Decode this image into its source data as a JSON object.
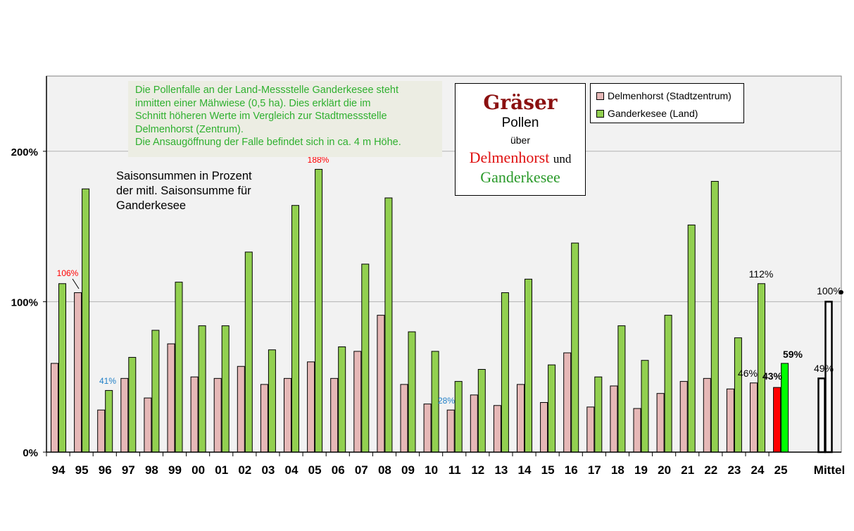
{
  "chart_data": {
    "type": "bar",
    "title": "Gräser Pollen über Delmenhorst und Ganderkesee",
    "ylabel": "Saisonsummen in Prozent der mitl. Saisonsumme für Ganderkesee",
    "ylim": [
      0,
      250
    ],
    "yticks": [
      0,
      100,
      200
    ],
    "ytick_labels": [
      "0%",
      "100%",
      "200%"
    ],
    "grid": true,
    "categories": [
      "94",
      "95",
      "96",
      "97",
      "98",
      "99",
      "00",
      "01",
      "02",
      "03",
      "04",
      "05",
      "06",
      "07",
      "08",
      "09",
      "10",
      "11",
      "12",
      "13",
      "14",
      "15",
      "16",
      "17",
      "18",
      "19",
      "20",
      "21",
      "22",
      "23",
      "24",
      "25",
      "Mittel"
    ],
    "series": [
      {
        "name": "Delmenhorst (Stadtzentrum)",
        "color": "#e6b8b7",
        "values": [
          59,
          106,
          28,
          49,
          36,
          72,
          50,
          49,
          57,
          45,
          49,
          60,
          49,
          67,
          91,
          45,
          32,
          28,
          38,
          31,
          45,
          33,
          66,
          30,
          44,
          29,
          39,
          47,
          49,
          42,
          46,
          43,
          49
        ]
      },
      {
        "name": "Ganderkesee (Land)",
        "color": "#92d050",
        "values": [
          112,
          175,
          41,
          63,
          81,
          113,
          84,
          84,
          133,
          68,
          164,
          188,
          70,
          125,
          169,
          80,
          67,
          47,
          55,
          106,
          115,
          58,
          139,
          50,
          84,
          61,
          91,
          151,
          180,
          76,
          112,
          59,
          100
        ]
      }
    ],
    "highlight_colors": {
      "delmenhorst_25": "#ff0000",
      "ganderkesee_25": "#00ff00",
      "mittel_fill": "#ffffff"
    },
    "data_labels": [
      {
        "text": "106%",
        "color": "#ff0000"
      },
      {
        "text": "188%",
        "color": "#ff0000"
      },
      {
        "text": "41%",
        "color": "#1f7fc7"
      },
      {
        "text": "28%",
        "color": "#1f7fc7"
      },
      {
        "text": "112%",
        "color": "#000000"
      },
      {
        "text": "46%",
        "color": "#000000"
      },
      {
        "text": "43%",
        "color": "#000000"
      },
      {
        "text": "59%",
        "color": "#000000"
      },
      {
        "text": "49%",
        "color": "#000000"
      },
      {
        "text": "100%",
        "color": "#000000"
      }
    ],
    "legend": {
      "position": "top-right",
      "entries": [
        "Delmenhorst (Stadtzentrum)",
        "Ganderkesee (Land)"
      ]
    }
  },
  "note_lines": [
    "Die Pollenfalle an der Land-Messstelle  Ganderkesee steht",
    "inmitten einer Mähwiese (0,5 ha). Dies erklärt die im",
    "Schnitt höheren Werte im Vergleich zur Stadtmessstelle",
    "Delmenhorst (Zentrum).",
    "Die Ansaugöffnung der Falle befindet sich  in ca. 4 m Höhe."
  ],
  "subtitle_lines": [
    "Saisonsummen in Prozent",
    "der mitl. Saisonsumme für",
    "Ganderkesee"
  ],
  "title": {
    "line1": "Gräser",
    "line2": "Pollen",
    "line3": "über",
    "line4_place1": "Delmenhorst",
    "line4_und": "und",
    "line5_place2": "Ganderkesee"
  },
  "legend": {
    "item1": "Delmenhorst (Stadtzentrum)",
    "item2": "Ganderkesee (Land)",
    "color1": "#e6b8b7",
    "color2": "#92d050"
  }
}
